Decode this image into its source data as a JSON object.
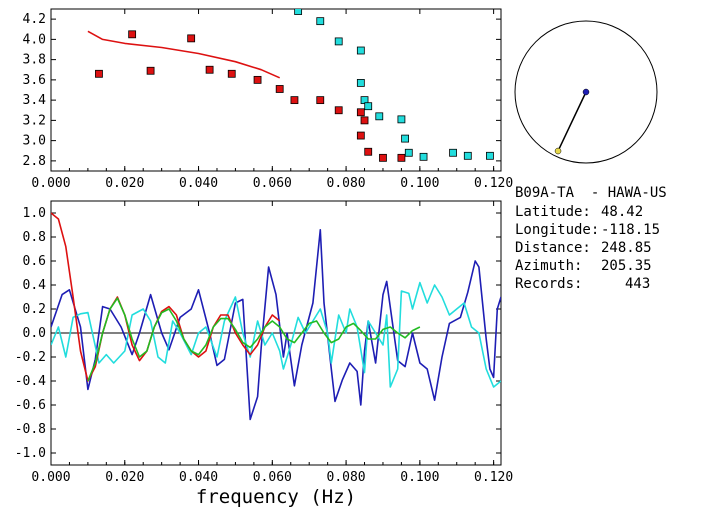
{
  "station": {
    "title": "B09A-TA  - HAWA-US",
    "latitude_label": "Latitude:",
    "latitude": "48.42",
    "longitude_label": "Longitude:",
    "longitude": "-118.15",
    "distance_label": "Distance:",
    "distance": "248.85",
    "azimuth_label": "Azimuth:",
    "azimuth": "205.35",
    "records_label": "Records:",
    "records": "443"
  },
  "chart_data": [
    {
      "type": "scatter",
      "xlim": [
        0.0,
        0.122
      ],
      "ylim": [
        2.7,
        4.3
      ],
      "x_ticks": [
        "0.000",
        "0.020",
        "0.040",
        "0.060",
        "0.080",
        "0.100",
        "0.120"
      ],
      "y_ticks": [
        "2.8",
        "3.0",
        "3.2",
        "3.4",
        "3.6",
        "3.8",
        "4.0",
        "4.2"
      ],
      "series": [
        {
          "color": "#dd1111",
          "marker": "square",
          "points": [
            [
              0.013,
              3.66
            ],
            [
              0.022,
              4.05
            ],
            [
              0.027,
              3.69
            ],
            [
              0.038,
              4.01
            ],
            [
              0.043,
              3.7
            ],
            [
              0.049,
              3.66
            ],
            [
              0.056,
              3.6
            ],
            [
              0.062,
              3.51
            ],
            [
              0.066,
              3.4
            ],
            [
              0.073,
              3.4
            ],
            [
              0.078,
              3.3
            ],
            [
              0.084,
              3.28
            ],
            [
              0.084,
              3.05
            ],
            [
              0.085,
              3.2
            ],
            [
              0.086,
              2.89
            ],
            [
              0.09,
              2.83
            ],
            [
              0.095,
              2.83
            ]
          ]
        },
        {
          "color": "#22dddd",
          "marker": "square",
          "points": [
            [
              0.067,
              4.28
            ],
            [
              0.073,
              4.18
            ],
            [
              0.078,
              3.98
            ],
            [
              0.084,
              3.89
            ],
            [
              0.084,
              3.57
            ],
            [
              0.085,
              3.4
            ],
            [
              0.086,
              3.34
            ],
            [
              0.089,
              3.24
            ],
            [
              0.095,
              3.21
            ],
            [
              0.096,
              3.02
            ],
            [
              0.097,
              2.88
            ],
            [
              0.101,
              2.84
            ],
            [
              0.109,
              2.88
            ],
            [
              0.113,
              2.85
            ],
            [
              0.119,
              2.85
            ]
          ]
        },
        {
          "color": "#dd1111",
          "marker": "line",
          "points": [
            [
              0.01,
              4.08
            ],
            [
              0.014,
              4.0
            ],
            [
              0.02,
              3.96
            ],
            [
              0.03,
              3.92
            ],
            [
              0.04,
              3.86
            ],
            [
              0.05,
              3.78
            ],
            [
              0.057,
              3.7
            ],
            [
              0.062,
              3.62
            ]
          ]
        }
      ]
    },
    {
      "type": "line",
      "xlabel": "frequency (Hz)",
      "xlim": [
        0.0,
        0.122
      ],
      "ylim": [
        -1.1,
        1.1
      ],
      "x_ticks": [
        "0.000",
        "0.020",
        "0.040",
        "0.060",
        "0.080",
        "0.100",
        "0.120"
      ],
      "y_ticks": [
        "1.0",
        "0.8",
        "0.6",
        "0.4",
        "0.2",
        "0.0",
        "-0.2",
        "-0.4",
        "-0.6",
        "-0.8",
        "-1.0"
      ],
      "series": [
        {
          "color": "#1e1eb4",
          "points": [
            [
              0,
              0.05
            ],
            [
              0.003,
              0.32
            ],
            [
              0.005,
              0.36
            ],
            [
              0.008,
              0.05
            ],
            [
              0.01,
              -0.47
            ],
            [
              0.012,
              -0.22
            ],
            [
              0.014,
              0.22
            ],
            [
              0.016,
              0.2
            ],
            [
              0.019,
              0.05
            ],
            [
              0.022,
              -0.18
            ],
            [
              0.024,
              0.0
            ],
            [
              0.027,
              0.32
            ],
            [
              0.03,
              0.0
            ],
            [
              0.032,
              -0.14
            ],
            [
              0.035,
              0.13
            ],
            [
              0.038,
              0.2
            ],
            [
              0.04,
              0.36
            ],
            [
              0.043,
              0.0
            ],
            [
              0.045,
              -0.27
            ],
            [
              0.047,
              -0.22
            ],
            [
              0.05,
              0.25
            ],
            [
              0.052,
              0.28
            ],
            [
              0.054,
              -0.72
            ],
            [
              0.056,
              -0.53
            ],
            [
              0.057,
              -0.12
            ],
            [
              0.059,
              0.55
            ],
            [
              0.061,
              0.32
            ],
            [
              0.063,
              -0.2
            ],
            [
              0.064,
              0.0
            ],
            [
              0.066,
              -0.44
            ],
            [
              0.068,
              -0.1
            ],
            [
              0.071,
              0.25
            ],
            [
              0.073,
              0.86
            ],
            [
              0.074,
              0.25
            ],
            [
              0.076,
              -0.3
            ],
            [
              0.077,
              -0.57
            ],
            [
              0.079,
              -0.39
            ],
            [
              0.081,
              -0.25
            ],
            [
              0.083,
              -0.32
            ],
            [
              0.084,
              -0.6
            ],
            [
              0.085,
              -0.15
            ],
            [
              0.086,
              0.1
            ],
            [
              0.088,
              -0.25
            ],
            [
              0.09,
              0.32
            ],
            [
              0.091,
              0.43
            ],
            [
              0.094,
              -0.23
            ],
            [
              0.096,
              -0.28
            ],
            [
              0.098,
              0.0
            ],
            [
              0.1,
              -0.25
            ],
            [
              0.102,
              -0.3
            ],
            [
              0.104,
              -0.56
            ],
            [
              0.106,
              -0.2
            ],
            [
              0.108,
              0.08
            ],
            [
              0.111,
              0.13
            ],
            [
              0.113,
              0.34
            ],
            [
              0.115,
              0.6
            ],
            [
              0.116,
              0.55
            ],
            [
              0.118,
              -0.05
            ],
            [
              0.119,
              -0.3
            ],
            [
              0.12,
              -0.37
            ],
            [
              0.121,
              0.2
            ],
            [
              0.122,
              0.3
            ]
          ]
        },
        {
          "color": "#22dddd",
          "points": [
            [
              0,
              -0.1
            ],
            [
              0.002,
              0.05
            ],
            [
              0.004,
              -0.2
            ],
            [
              0.006,
              0.13
            ],
            [
              0.008,
              0.16
            ],
            [
              0.01,
              0.17
            ],
            [
              0.013,
              -0.25
            ],
            [
              0.015,
              -0.18
            ],
            [
              0.017,
              -0.25
            ],
            [
              0.02,
              -0.15
            ],
            [
              0.022,
              0.15
            ],
            [
              0.025,
              0.2
            ],
            [
              0.027,
              0.1
            ],
            [
              0.029,
              -0.2
            ],
            [
              0.031,
              -0.25
            ],
            [
              0.033,
              0.1
            ],
            [
              0.035,
              0.0
            ],
            [
              0.038,
              -0.18
            ],
            [
              0.04,
              0.0
            ],
            [
              0.042,
              0.05
            ],
            [
              0.045,
              -0.2
            ],
            [
              0.047,
              0.1
            ],
            [
              0.05,
              0.3
            ],
            [
              0.052,
              0.0
            ],
            [
              0.054,
              -0.2
            ],
            [
              0.056,
              0.1
            ],
            [
              0.058,
              -0.1
            ],
            [
              0.06,
              0.0
            ],
            [
              0.062,
              -0.15
            ],
            [
              0.063,
              -0.3
            ],
            [
              0.065,
              -0.1
            ],
            [
              0.067,
              0.13
            ],
            [
              0.069,
              0.0
            ],
            [
              0.071,
              0.1
            ],
            [
              0.073,
              0.2
            ],
            [
              0.075,
              0.0
            ],
            [
              0.076,
              -0.25
            ],
            [
              0.078,
              0.15
            ],
            [
              0.08,
              0.0
            ],
            [
              0.081,
              0.2
            ],
            [
              0.083,
              0.05
            ],
            [
              0.085,
              -0.33
            ],
            [
              0.086,
              0.1
            ],
            [
              0.088,
              0.0
            ],
            [
              0.09,
              -0.1
            ],
            [
              0.091,
              0.15
            ],
            [
              0.092,
              -0.45
            ],
            [
              0.094,
              -0.3
            ],
            [
              0.095,
              0.35
            ],
            [
              0.097,
              0.33
            ],
            [
              0.098,
              0.2
            ],
            [
              0.1,
              0.42
            ],
            [
              0.102,
              0.25
            ],
            [
              0.104,
              0.4
            ],
            [
              0.106,
              0.3
            ],
            [
              0.108,
              0.15
            ],
            [
              0.11,
              0.2
            ],
            [
              0.112,
              0.25
            ],
            [
              0.114,
              0.05
            ],
            [
              0.116,
              0.0
            ],
            [
              0.118,
              -0.3
            ],
            [
              0.12,
              -0.45
            ],
            [
              0.122,
              -0.4
            ]
          ]
        },
        {
          "color": "#dd1111",
          "points": [
            [
              0,
              1.0
            ],
            [
              0.002,
              0.95
            ],
            [
              0.004,
              0.72
            ],
            [
              0.006,
              0.3
            ],
            [
              0.008,
              -0.15
            ],
            [
              0.01,
              -0.4
            ],
            [
              0.012,
              -0.28
            ],
            [
              0.014,
              0.0
            ],
            [
              0.016,
              0.2
            ],
            [
              0.018,
              0.3
            ],
            [
              0.02,
              0.15
            ],
            [
              0.022,
              -0.1
            ],
            [
              0.024,
              -0.23
            ],
            [
              0.026,
              -0.15
            ],
            [
              0.028,
              0.05
            ],
            [
              0.03,
              0.18
            ],
            [
              0.032,
              0.22
            ],
            [
              0.034,
              0.15
            ],
            [
              0.036,
              -0.05
            ],
            [
              0.038,
              -0.15
            ],
            [
              0.04,
              -0.2
            ],
            [
              0.042,
              -0.15
            ],
            [
              0.044,
              0.05
            ],
            [
              0.046,
              0.15
            ],
            [
              0.048,
              0.15
            ],
            [
              0.05,
              0.0
            ],
            [
              0.052,
              -0.1
            ],
            [
              0.054,
              -0.18
            ],
            [
              0.056,
              -0.1
            ],
            [
              0.058,
              0.05
            ],
            [
              0.06,
              0.15
            ],
            [
              0.062,
              0.1
            ]
          ]
        },
        {
          "color": "#22bb22",
          "points": [
            [
              0.01,
              -0.4
            ],
            [
              0.012,
              -0.25
            ],
            [
              0.014,
              0.0
            ],
            [
              0.016,
              0.2
            ],
            [
              0.018,
              0.29
            ],
            [
              0.02,
              0.15
            ],
            [
              0.022,
              -0.05
            ],
            [
              0.024,
              -0.2
            ],
            [
              0.026,
              -0.15
            ],
            [
              0.028,
              0.05
            ],
            [
              0.03,
              0.17
            ],
            [
              0.032,
              0.2
            ],
            [
              0.034,
              0.1
            ],
            [
              0.036,
              -0.05
            ],
            [
              0.038,
              -0.15
            ],
            [
              0.04,
              -0.18
            ],
            [
              0.042,
              -0.1
            ],
            [
              0.044,
              0.05
            ],
            [
              0.046,
              0.12
            ],
            [
              0.048,
              0.12
            ],
            [
              0.05,
              0.03
            ],
            [
              0.052,
              -0.08
            ],
            [
              0.054,
              -0.12
            ],
            [
              0.056,
              -0.05
            ],
            [
              0.058,
              0.05
            ],
            [
              0.06,
              0.1
            ],
            [
              0.062,
              0.05
            ],
            [
              0.064,
              -0.05
            ],
            [
              0.066,
              -0.08
            ],
            [
              0.068,
              0.0
            ],
            [
              0.07,
              0.08
            ],
            [
              0.072,
              0.1
            ],
            [
              0.074,
              0.0
            ],
            [
              0.076,
              -0.08
            ],
            [
              0.078,
              -0.05
            ],
            [
              0.08,
              0.05
            ],
            [
              0.082,
              0.08
            ],
            [
              0.084,
              0.02
            ],
            [
              0.086,
              -0.05
            ],
            [
              0.088,
              -0.05
            ],
            [
              0.09,
              0.03
            ],
            [
              0.092,
              0.05
            ],
            [
              0.094,
              0.0
            ],
            [
              0.096,
              -0.04
            ],
            [
              0.098,
              0.02
            ],
            [
              0.1,
              0.05
            ]
          ]
        }
      ]
    },
    {
      "type": "polar",
      "azimuth_deg": 205.35,
      "pointer_length_fraction": 0.92
    }
  ]
}
